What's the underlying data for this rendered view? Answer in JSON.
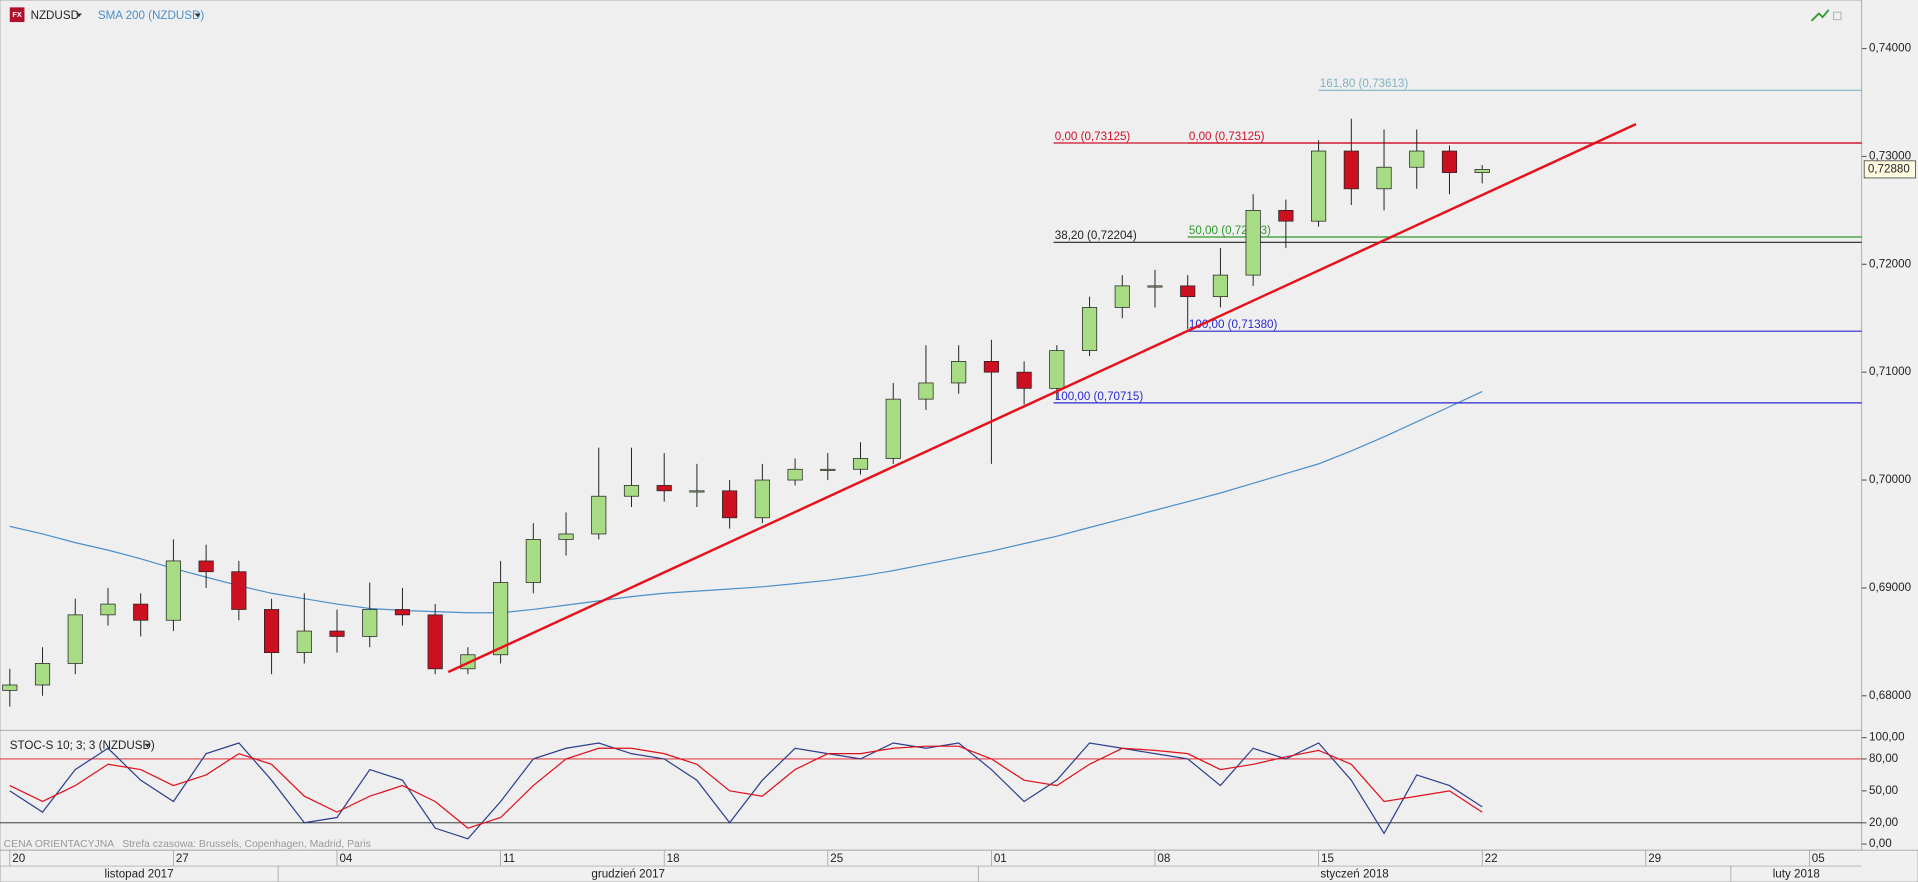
{
  "chart_data": [
    {
      "type": "candlestick",
      "title": "NZDUSD",
      "open": [
        0.6805,
        0.681,
        0.683,
        0.6875,
        0.6885,
        0.687,
        0.6925,
        0.6915,
        0.688,
        0.684,
        0.686,
        0.6855,
        0.688,
        0.6875,
        0.6825,
        0.6838,
        0.6905,
        0.6945,
        0.695,
        0.6985,
        0.6995,
        0.699,
        0.699,
        0.6965,
        0.7,
        0.701,
        0.701,
        0.702,
        0.7075,
        0.709,
        0.711,
        0.71,
        0.7085,
        0.712,
        0.716,
        0.718,
        0.718,
        0.717,
        0.719,
        0.725,
        0.724,
        0.7305,
        0.727,
        0.729,
        0.7305,
        0.7285
      ],
      "high": [
        0.6825,
        0.6845,
        0.689,
        0.69,
        0.6895,
        0.6945,
        0.694,
        0.6925,
        0.689,
        0.6895,
        0.688,
        0.6905,
        0.69,
        0.6885,
        0.6845,
        0.6925,
        0.696,
        0.697,
        0.703,
        0.703,
        0.7025,
        0.7015,
        0.7,
        0.7015,
        0.702,
        0.7025,
        0.7035,
        0.709,
        0.7125,
        0.7125,
        0.713,
        0.711,
        0.7125,
        0.717,
        0.719,
        0.7195,
        0.719,
        0.7215,
        0.7265,
        0.726,
        0.7315,
        0.7335,
        0.7325,
        0.7325,
        0.731,
        0.7292
      ],
      "low": [
        0.679,
        0.68,
        0.682,
        0.6865,
        0.6855,
        0.686,
        0.69,
        0.687,
        0.682,
        0.683,
        0.684,
        0.6845,
        0.6865,
        0.682,
        0.682,
        0.683,
        0.6895,
        0.693,
        0.6945,
        0.6975,
        0.698,
        0.6975,
        0.6955,
        0.696,
        0.6995,
        0.7,
        0.7005,
        0.7015,
        0.7065,
        0.708,
        0.7015,
        0.707,
        0.7075,
        0.7115,
        0.715,
        0.716,
        0.714,
        0.716,
        0.718,
        0.7215,
        0.7235,
        0.7255,
        0.725,
        0.727,
        0.7265,
        0.7275
      ],
      "close": [
        0.681,
        0.683,
        0.6875,
        0.6885,
        0.687,
        0.6925,
        0.6915,
        0.688,
        0.684,
        0.686,
        0.6855,
        0.688,
        0.6875,
        0.6825,
        0.6838,
        0.6905,
        0.6945,
        0.695,
        0.6985,
        0.6995,
        0.699,
        0.699,
        0.6965,
        0.7,
        0.701,
        0.701,
        0.702,
        0.7075,
        0.709,
        0.711,
        0.71,
        0.7085,
        0.712,
        0.716,
        0.718,
        0.718,
        0.717,
        0.719,
        0.725,
        0.724,
        0.7305,
        0.727,
        0.729,
        0.7305,
        0.7285,
        0.7288
      ],
      "up_color": "#a8dc84",
      "down_color": "#cc1020",
      "series": [
        {
          "name": "SMA 200 (NZDUSD)",
          "color": "#4a8fcc",
          "values": [
            0.6957,
            0.695,
            0.6942,
            0.6935,
            0.6927,
            0.6918,
            0.691,
            0.6902,
            0.6895,
            0.689,
            0.6885,
            0.6881,
            0.6879,
            0.6878,
            0.6877,
            0.6877,
            0.688,
            0.6884,
            0.6888,
            0.6892,
            0.6895,
            0.6897,
            0.6899,
            0.6901,
            0.6904,
            0.6907,
            0.6911,
            0.6916,
            0.6922,
            0.6928,
            0.6934,
            0.6941,
            0.6948,
            0.6956,
            0.6964,
            0.6972,
            0.698,
            0.6988,
            0.6997,
            0.7006,
            0.7015,
            0.7027,
            0.704,
            0.7054,
            0.7068,
            0.7082
          ]
        }
      ],
      "trendline": {
        "x": [
          13.4,
          49.7
        ],
        "y": [
          0.6822,
          0.733
        ],
        "color": "#e8101a"
      },
      "levels": [
        {
          "label": "161,80 (0,73613)",
          "value": 0.73613,
          "x_start": 40.0,
          "color": "#7fb3c3"
        },
        {
          "label": "0,00 (0,73125)",
          "value": 0.73125,
          "x_start": 31.9,
          "color": "#d0102a"
        },
        {
          "label": "0,00 (0,73125)",
          "value": 0.73125,
          "x_start": 36.0,
          "color": "#d0102a"
        },
        {
          "label": "50,00 (0,72253)",
          "value": 0.72253,
          "x_start": 36.0,
          "color": "#2e9a2e"
        },
        {
          "label": "38,20 (0,72204)",
          "value": 0.72204,
          "x_start": 31.9,
          "color": "#222222"
        },
        {
          "label": "100,00 (0,71380)",
          "value": 0.7138,
          "x_start": 36.0,
          "color": "#2a2ad0"
        },
        {
          "label": "100,00 (0,70715)",
          "value": 0.70715,
          "x_start": 31.9,
          "color": "#2a2ad0"
        }
      ],
      "last_price": {
        "value": 0.7288,
        "label": "0,72880"
      },
      "xlim": [
        -0.3,
        56.6
      ],
      "xticks": [
        {
          "value": 0,
          "label": "20"
        },
        {
          "value": 5,
          "label": "27"
        },
        {
          "value": 10,
          "label": "04"
        },
        {
          "value": 15,
          "label": "11"
        },
        {
          "value": 20,
          "label": "18"
        },
        {
          "value": 25,
          "label": "25"
        },
        {
          "value": 30,
          "label": "01"
        },
        {
          "value": 35,
          "label": "08"
        },
        {
          "value": 40,
          "label": "15"
        },
        {
          "value": 45,
          "label": "22"
        },
        {
          "value": 50,
          "label": "29"
        },
        {
          "value": 55,
          "label": "05"
        }
      ],
      "months": [
        {
          "label": "listopad 2017",
          "start": -0.3
        },
        {
          "label": "grudzień 2017",
          "start": 8.2
        },
        {
          "label": "styczeń 2018",
          "start": 29.6
        },
        {
          "label": "luty 2018",
          "start": 52.6
        }
      ],
      "ylim": [
        0.6768,
        0.7445
      ],
      "yticks": [
        {
          "value": 0.68,
          "label": "0,68000"
        },
        {
          "value": 0.69,
          "label": "0,69000"
        },
        {
          "value": 0.7,
          "label": "0,70000"
        },
        {
          "value": 0.71,
          "label": "0,71000"
        },
        {
          "value": 0.72,
          "label": "0,72000"
        },
        {
          "value": 0.73,
          "label": "0,73000"
        },
        {
          "value": 0.74,
          "label": "0,74000"
        }
      ]
    },
    {
      "type": "stochastic",
      "title": "STOC-S 10; 3; 3 (NZDUSD)",
      "series": [
        {
          "color": "#2c3f8c",
          "values": [
            50,
            30,
            70,
            90,
            60,
            40,
            85,
            95,
            60,
            20,
            25,
            70,
            60,
            15,
            5,
            40,
            80,
            90,
            95,
            85,
            80,
            60,
            20,
            60,
            90,
            85,
            80,
            95,
            90,
            95,
            70,
            40,
            60,
            95,
            90,
            85,
            80,
            55,
            90,
            80,
            95,
            60,
            10,
            65,
            55,
            35
          ]
        },
        {
          "color": "#e0101a",
          "values": [
            55,
            40,
            55,
            75,
            70,
            55,
            65,
            85,
            75,
            45,
            30,
            45,
            55,
            40,
            15,
            25,
            55,
            80,
            90,
            90,
            85,
            75,
            50,
            45,
            70,
            85,
            85,
            90,
            92,
            92,
            80,
            60,
            55,
            75,
            90,
            88,
            85,
            70,
            75,
            82,
            88,
            75,
            40,
            45,
            50,
            30
          ]
        }
      ],
      "levels": [
        {
          "value": 80,
          "color": "#e0101a"
        },
        {
          "value": 20,
          "color": "#222222"
        }
      ],
      "ylim": [
        -5.7,
        106.9
      ],
      "yticks": [
        {
          "value": 100,
          "label": "100,00"
        },
        {
          "value": 80,
          "label": "80,00"
        },
        {
          "value": 50,
          "label": "50,00"
        },
        {
          "value": 20,
          "label": "20,00"
        },
        {
          "value": 0,
          "label": "0,00"
        }
      ],
      "note": "CENA ORIENTACYJNA   Strefa czasowa: Brussels, Copenhagen, Madrid, Paris"
    }
  ]
}
